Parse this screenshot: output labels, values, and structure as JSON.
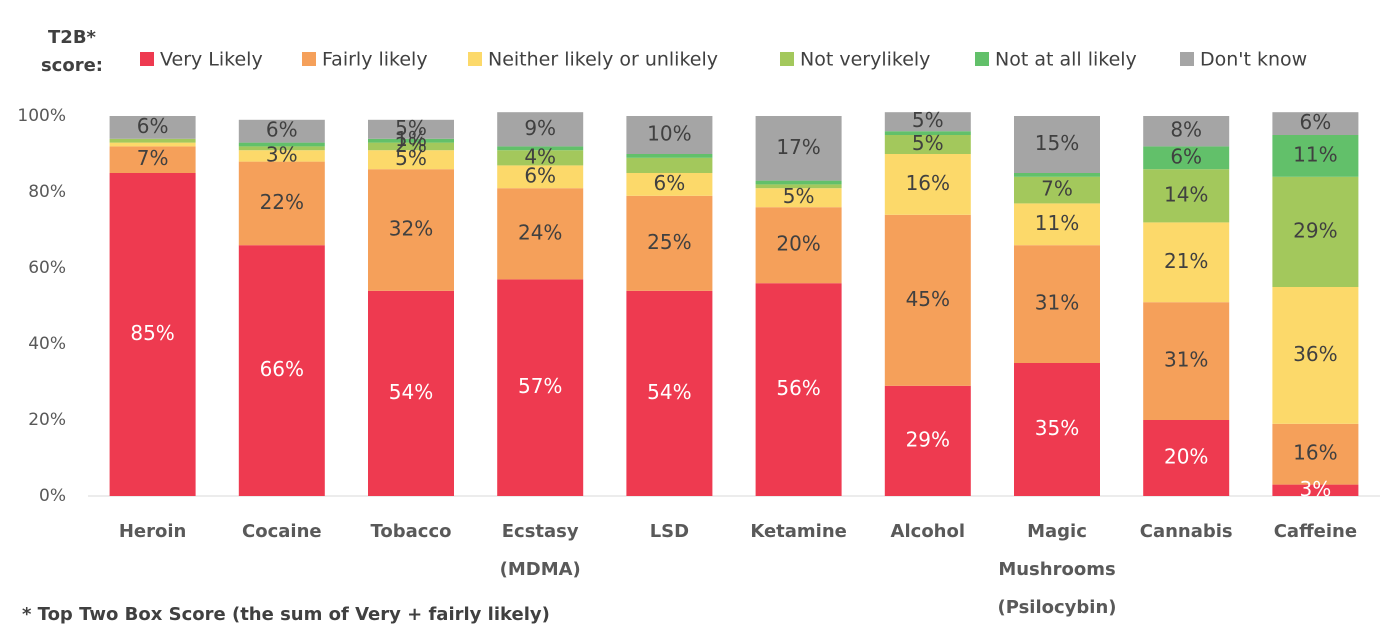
{
  "chart_data": {
    "type": "stacked_bar",
    "legend_title": [
      "T2B*",
      "score:"
    ],
    "footnote": "* Top Two Box Score (the sum of Very + fairly likely)",
    "categories": [
      [
        "Heroin"
      ],
      [
        "Cocaine"
      ],
      [
        "Tobacco"
      ],
      [
        "Ecstasy",
        "(MDMA)"
      ],
      [
        "LSD"
      ],
      [
        "Ketamine"
      ],
      [
        "Alcohol"
      ],
      [
        "Magic",
        "Mushrooms",
        "(Psilocybin)"
      ],
      [
        "Cannabis"
      ],
      [
        "Caffeine"
      ]
    ],
    "ylim": [
      0,
      100
    ],
    "yticks": [
      {
        "value": 0,
        "label": "0%"
      },
      {
        "value": 20,
        "label": "20%"
      },
      {
        "value": 40,
        "label": "40%"
      },
      {
        "value": 60,
        "label": "60%"
      },
      {
        "value": 80,
        "label": "80%"
      },
      {
        "value": 100,
        "label": "100%"
      }
    ],
    "legend": "top",
    "series": [
      {
        "name": "Very Likely",
        "color": "#ee3a50",
        "values": [
          85,
          66,
          54,
          57,
          54,
          56,
          29,
          35,
          20,
          3
        ],
        "value_labels": [
          "85%",
          "66%",
          "54%",
          "57%",
          "54%",
          "56%",
          "29%",
          "35%",
          "20%",
          "3%"
        ]
      },
      {
        "name": "Fairly likely",
        "color": "#f5a05a",
        "values": [
          7,
          22,
          32,
          24,
          25,
          20,
          45,
          31,
          31,
          16
        ],
        "value_labels": [
          "7%",
          "22%",
          "32%",
          "24%",
          "25%",
          "20%",
          "45%",
          "31%",
          "31%",
          "16%"
        ]
      },
      {
        "name": "Neither likely or unlikely",
        "color": "#fcd96a",
        "values": [
          1,
          3,
          5,
          6,
          6,
          5,
          16,
          11,
          21,
          36
        ],
        "value_labels": [
          null,
          "3%",
          "5%",
          "6%",
          "6%",
          "5%",
          "16%",
          "11%",
          "21%",
          "36%"
        ]
      },
      {
        "name": "Not verylikely",
        "color": "#a3c85c",
        "values": [
          1,
          1,
          2,
          4,
          4,
          1,
          5,
          7,
          14,
          29
        ],
        "value_labels": [
          null,
          null,
          "2%",
          "4%",
          null,
          null,
          "5%",
          "7%",
          "14%",
          "29%"
        ]
      },
      {
        "name": "Not at all likely",
        "color": "#62c06a",
        "values": [
          0,
          1,
          1,
          1,
          1,
          1,
          1,
          1,
          6,
          11
        ],
        "value_labels": [
          null,
          null,
          "1%",
          null,
          null,
          null,
          null,
          null,
          "6%",
          "11%"
        ]
      },
      {
        "name": "Don't know",
        "color": "#a5a5a5",
        "values": [
          6,
          6,
          5,
          9,
          10,
          17,
          5,
          15,
          8,
          6
        ],
        "value_labels": [
          "6%",
          "6%",
          "5%",
          "9%",
          "10%",
          "17%",
          "5%",
          "15%",
          "8%",
          "6%"
        ]
      }
    ]
  }
}
